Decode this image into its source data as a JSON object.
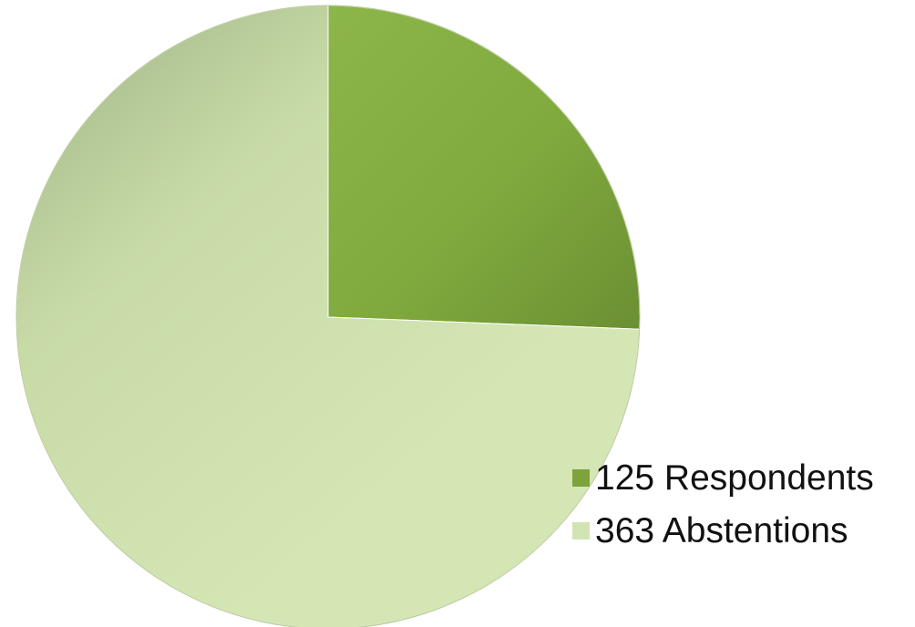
{
  "chart_data": {
    "type": "pie",
    "slices": [
      {
        "label": "125 Respondents",
        "value": 125,
        "color": "#7ea33a"
      },
      {
        "label": "363 Abstentions",
        "value": 363,
        "color": "#d2e4b1"
      }
    ],
    "legend": "right",
    "title": ""
  }
}
